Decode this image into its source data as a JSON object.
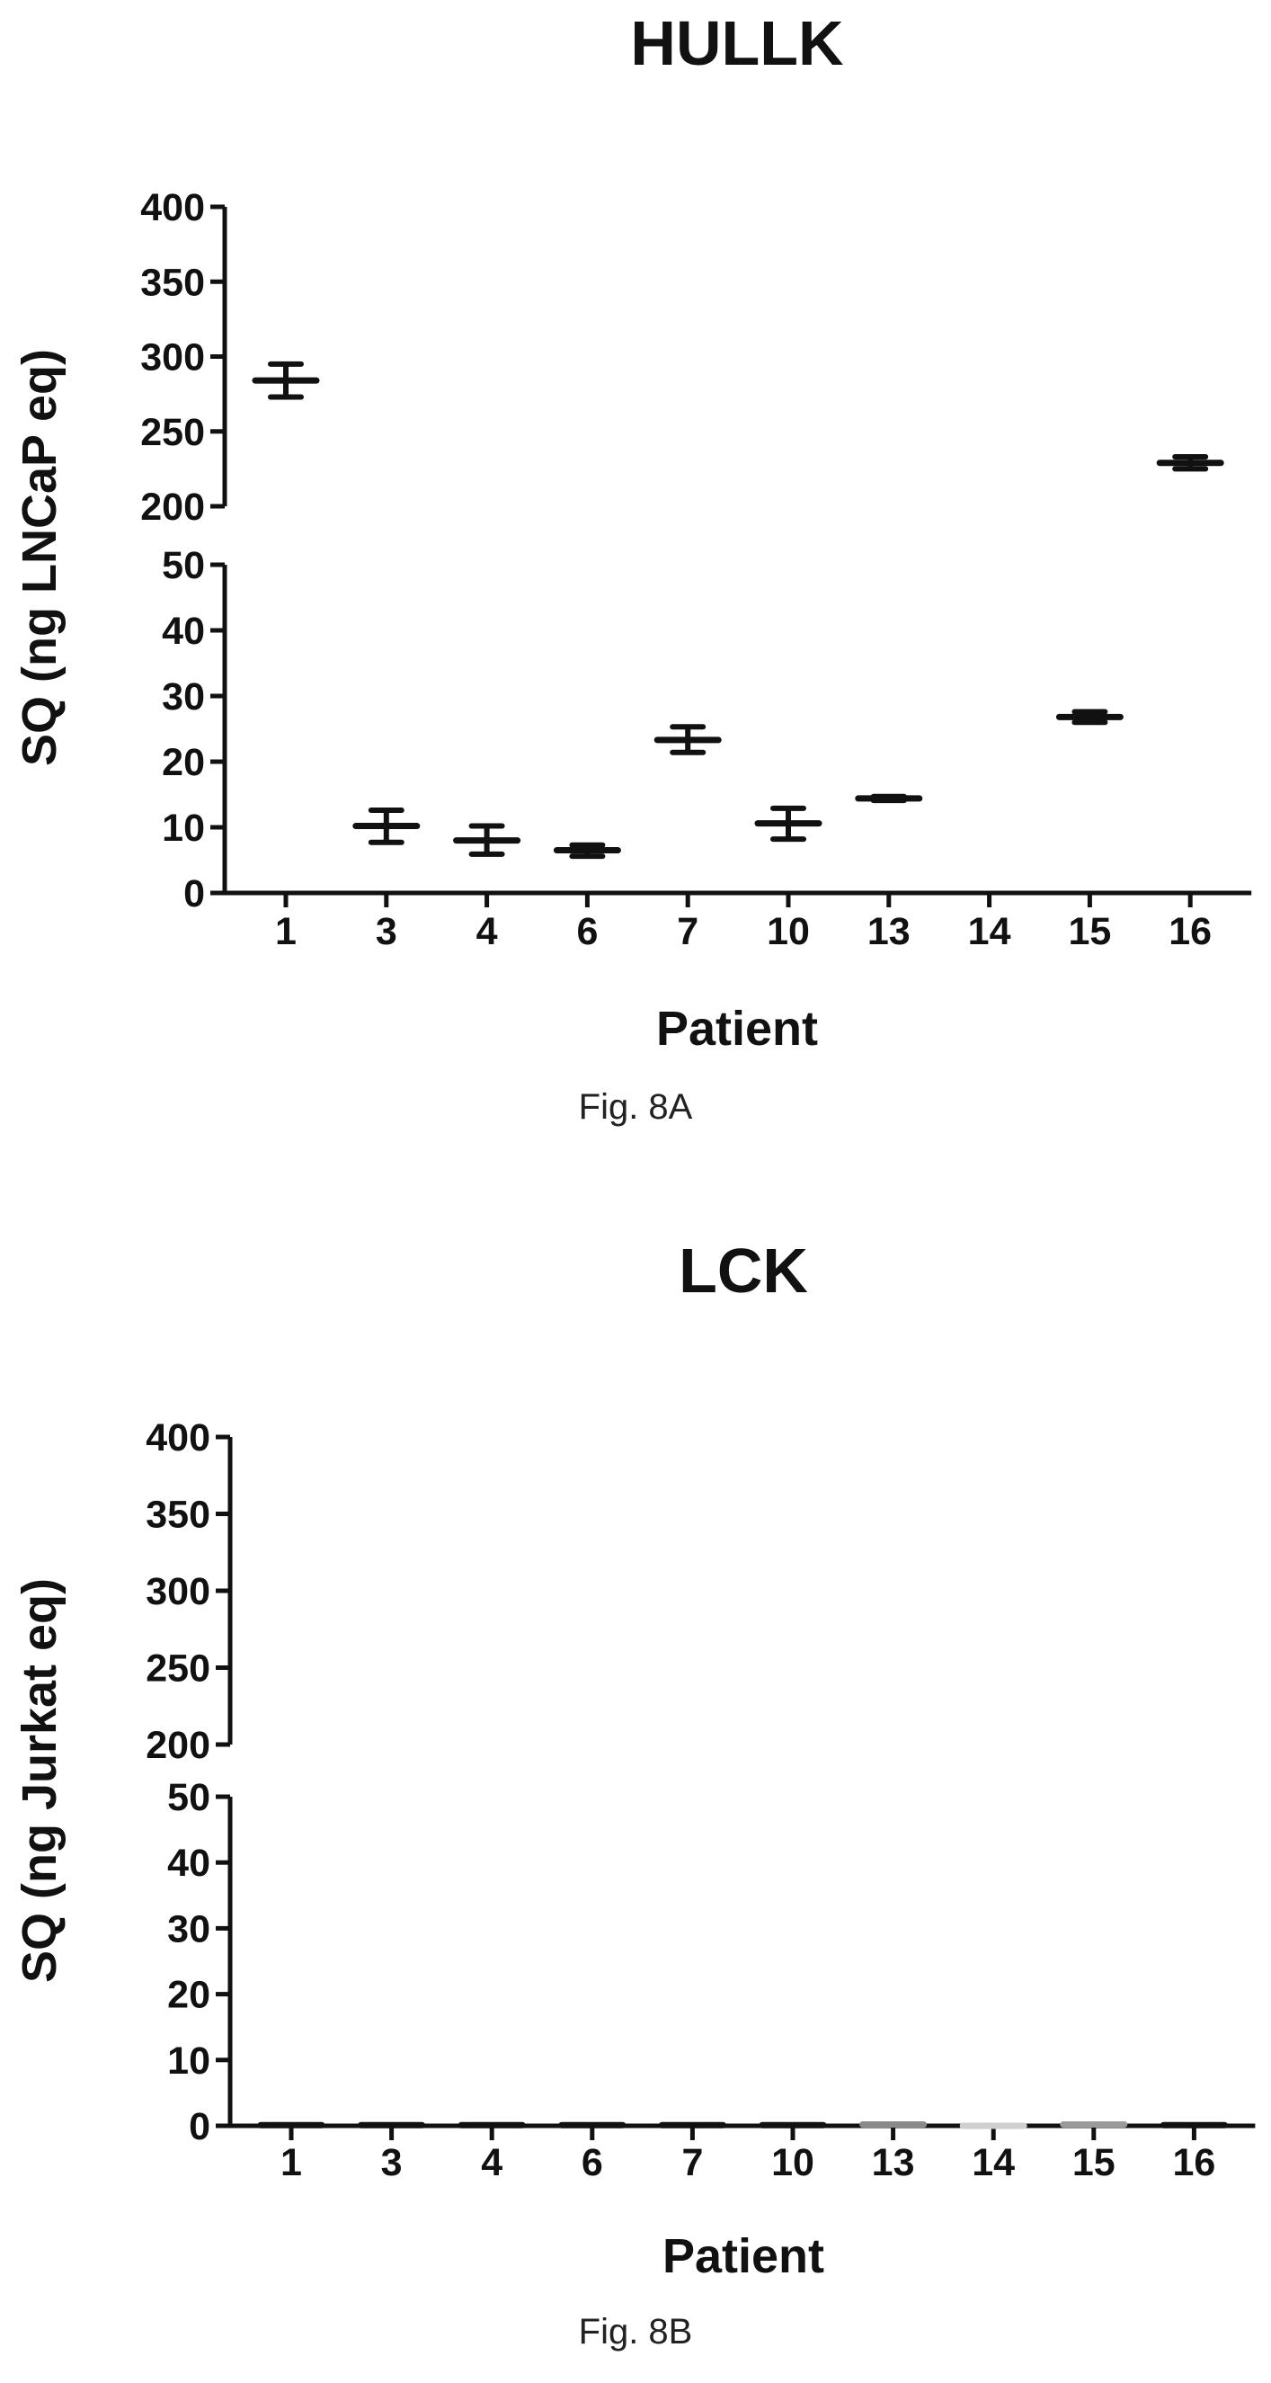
{
  "chart_data": [
    {
      "type": "scatter",
      "title": "HULLK",
      "caption": "Fig. 8A",
      "xlabel": "Patient",
      "ylabel": "SQ (ng LNCaP eq)",
      "categories": [
        "1",
        "3",
        "4",
        "6",
        "7",
        "10",
        "13",
        "14",
        "15",
        "16"
      ],
      "y_axis_break": {
        "lower": {
          "ylim": [
            0,
            50
          ],
          "ticks": [
            0,
            10,
            20,
            30,
            40,
            50
          ]
        },
        "upper": {
          "ylim": [
            200,
            400
          ],
          "ticks": [
            200,
            250,
            300,
            350,
            400
          ]
        }
      },
      "grid": false,
      "legend": "none",
      "series": [
        {
          "mean": [
            284,
            10.2,
            8.0,
            6.5,
            23.3,
            10.6,
            14.4,
            null,
            26.8,
            229
          ],
          "error_low": [
            273,
            7.7,
            5.9,
            5.6,
            21.4,
            8.2,
            14.1,
            null,
            26.0,
            225
          ],
          "error_high": [
            295,
            12.6,
            10.2,
            7.3,
            25.3,
            12.9,
            14.7,
            null,
            27.6,
            233
          ]
        }
      ]
    },
    {
      "type": "scatter",
      "title": "LCK",
      "caption": "Fig. 8B",
      "xlabel": "Patient",
      "ylabel": "SQ (ng Jurkat eq)",
      "categories": [
        "1",
        "3",
        "4",
        "6",
        "7",
        "10",
        "13",
        "14",
        "15",
        "16"
      ],
      "y_axis_break": {
        "lower": {
          "ylim": [
            0,
            50
          ],
          "ticks": [
            0,
            10,
            20,
            30,
            40,
            50
          ]
        },
        "upper": {
          "ylim": [
            200,
            400
          ],
          "ticks": [
            200,
            250,
            300,
            350,
            400
          ]
        }
      },
      "grid": false,
      "legend": "none",
      "series": [
        {
          "mean": [
            0.1,
            0.1,
            0.1,
            0.1,
            0.1,
            0.1,
            0.2,
            0,
            0.2,
            0.1
          ],
          "error_low": [
            0.1,
            0.1,
            0.1,
            0.1,
            0.1,
            0.1,
            0.2,
            0,
            0.2,
            0.1
          ],
          "error_high": [
            0.1,
            0.1,
            0.1,
            0.1,
            0.1,
            0.1,
            0.2,
            0,
            0.2,
            0.1
          ],
          "marker_colors": [
            "#111111",
            "#111111",
            "#111111",
            "#111111",
            "#111111",
            "#111111",
            "#8a8a8a",
            "#cfcfcf",
            "#9a9a9a",
            "#111111"
          ]
        }
      ]
    }
  ]
}
